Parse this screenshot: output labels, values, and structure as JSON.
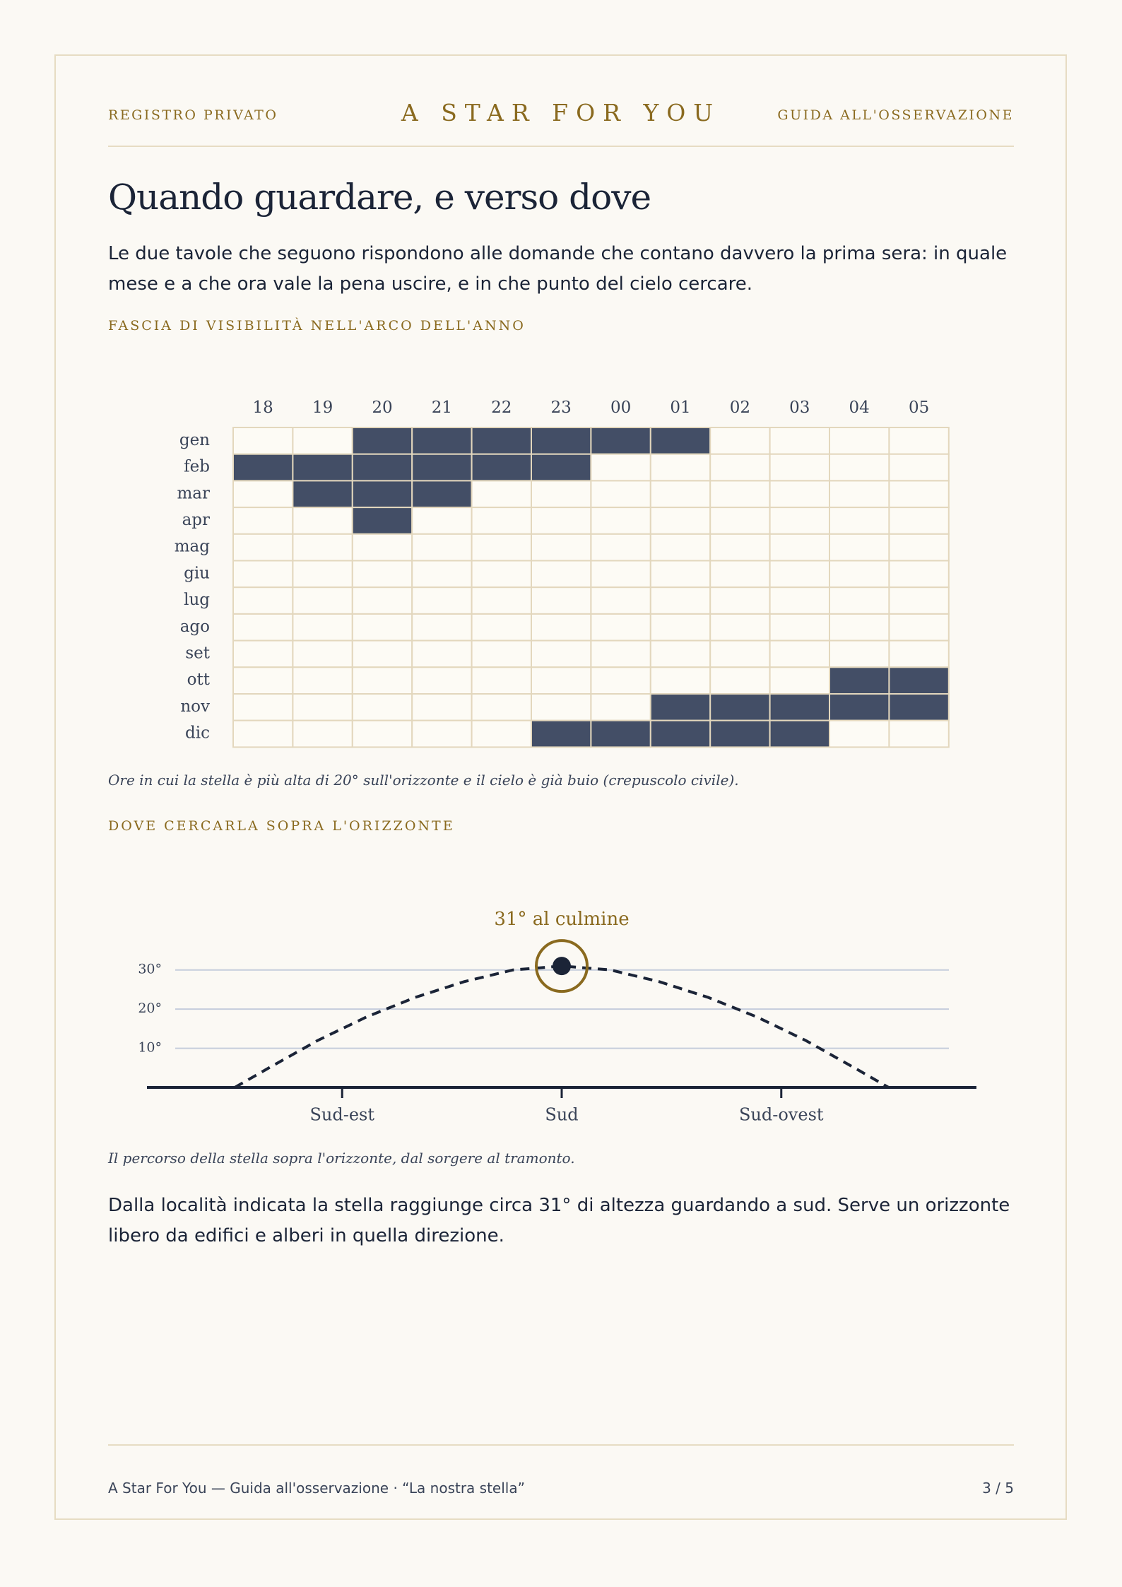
{
  "header": {
    "left": "REGISTRO PRIVATO",
    "brand": "A STAR FOR YOU",
    "right": "GUIDA ALL'OSSERVAZIONE"
  },
  "title": "Quando guardare, e verso dove",
  "intro": "Le due tavole che seguono rispondono alle domande che contano davvero la prima sera: in quale mese e a che ora vale la pena uscire, e in che punto del cielo cercare.",
  "visibility": {
    "label": "FASCIA DI VISIBILITÀ NELL'ARCO DELL'ANNO",
    "chart": {
      "type": "heatmap",
      "columns": [
        "18",
        "19",
        "20",
        "21",
        "22",
        "23",
        "00",
        "01",
        "02",
        "03",
        "04",
        "05"
      ],
      "rows": [
        "gen",
        "feb",
        "mar",
        "apr",
        "mag",
        "giu",
        "lug",
        "ago",
        "set",
        "ott",
        "nov",
        "dic"
      ],
      "values": [
        [
          0,
          0,
          1,
          1,
          1,
          1,
          1,
          1,
          0,
          0,
          0,
          0
        ],
        [
          1,
          1,
          1,
          1,
          1,
          1,
          0,
          0,
          0,
          0,
          0,
          0
        ],
        [
          0,
          1,
          1,
          1,
          0,
          0,
          0,
          0,
          0,
          0,
          0,
          0
        ],
        [
          0,
          0,
          1,
          0,
          0,
          0,
          0,
          0,
          0,
          0,
          0,
          0
        ],
        [
          0,
          0,
          0,
          0,
          0,
          0,
          0,
          0,
          0,
          0,
          0,
          0
        ],
        [
          0,
          0,
          0,
          0,
          0,
          0,
          0,
          0,
          0,
          0,
          0,
          0
        ],
        [
          0,
          0,
          0,
          0,
          0,
          0,
          0,
          0,
          0,
          0,
          0,
          0
        ],
        [
          0,
          0,
          0,
          0,
          0,
          0,
          0,
          0,
          0,
          0,
          0,
          0
        ],
        [
          0,
          0,
          0,
          0,
          0,
          0,
          0,
          0,
          0,
          0,
          0,
          0
        ],
        [
          0,
          0,
          0,
          0,
          0,
          0,
          0,
          0,
          0,
          0,
          1,
          1
        ],
        [
          0,
          0,
          0,
          0,
          0,
          0,
          0,
          1,
          1,
          1,
          1,
          1
        ],
        [
          0,
          0,
          0,
          0,
          0,
          1,
          1,
          1,
          1,
          1,
          0,
          0
        ]
      ],
      "color": "#434e66"
    },
    "caption": "Ore in cui la stella è più alta di 20° sull'orizzonte e il cielo è già buio (crepuscolo civile)."
  },
  "path": {
    "label": "DOVE CERCARLA SOPRA L'ORIZZONTE",
    "chart": {
      "type": "line",
      "x": [
        113,
        120,
        130,
        140,
        150,
        160,
        170,
        180,
        190,
        200,
        210,
        220,
        230,
        240,
        247
      ],
      "y": [
        0,
        5,
        12,
        18,
        23,
        27,
        30,
        31,
        30,
        27,
        23,
        18,
        12,
        5,
        0
      ],
      "xlim": [
        95,
        265
      ],
      "ylim": [
        0,
        35
      ],
      "xticks": [
        {
          "value": 135,
          "label": "Sud-est"
        },
        {
          "value": 180,
          "label": "Sud"
        },
        {
          "value": 225,
          "label": "Sud-ovest"
        }
      ],
      "yticks": [
        {
          "value": 10,
          "label": "10°"
        },
        {
          "value": 20,
          "label": "20°"
        },
        {
          "value": 30,
          "label": "30°"
        }
      ],
      "grid": true,
      "color": "#1b2437",
      "peak": {
        "x": 180,
        "y": 31,
        "label": "31° al culmine"
      }
    },
    "caption": "Il percorso della stella sopra l'orizzonte, dal sorgere al tramonto."
  },
  "conclusion": "Dalla località indicata la stella raggiunge circa 31° di altezza guardando a sud. Serve un orizzonte libero da edifici e alberi in quella direzione.",
  "footer": {
    "left": "A Star For You — Guida all'osservazione · “La nostra stella”",
    "page": "3 / 5"
  }
}
